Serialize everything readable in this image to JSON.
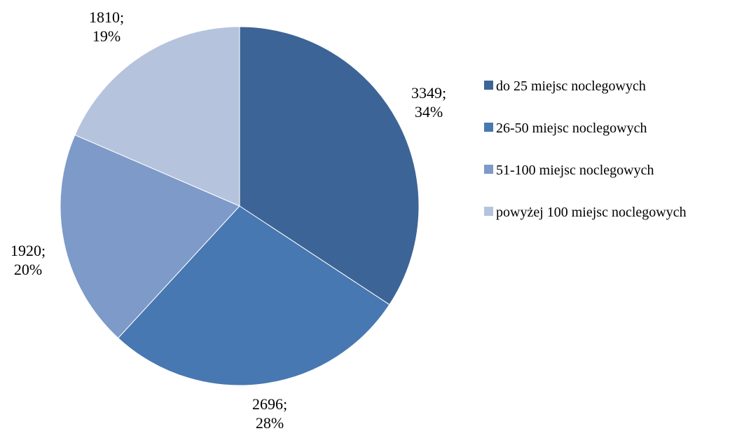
{
  "chart_data": {
    "type": "pie",
    "start_angle_deg": 0,
    "direction": "clockwise",
    "slices": [
      {
        "name": "do 25 miejsc noclegowych",
        "value": 3349,
        "percent_label": "34%",
        "color": "#3D6496"
      },
      {
        "name": "26-50 miejsc noclegowych",
        "value": 2696,
        "percent_label": "28%",
        "color": "#4878B1"
      },
      {
        "name": "51-100 miejsc noclegowych",
        "value": 1920,
        "percent_label": "20%",
        "color": "#7D9AC8"
      },
      {
        "name": "powyżej 100 miejsc noclegowych",
        "value": 1810,
        "percent_label": "19%",
        "color": "#B5C3DD"
      }
    ],
    "legend_position": "right",
    "data_label_format": "value; percent"
  }
}
